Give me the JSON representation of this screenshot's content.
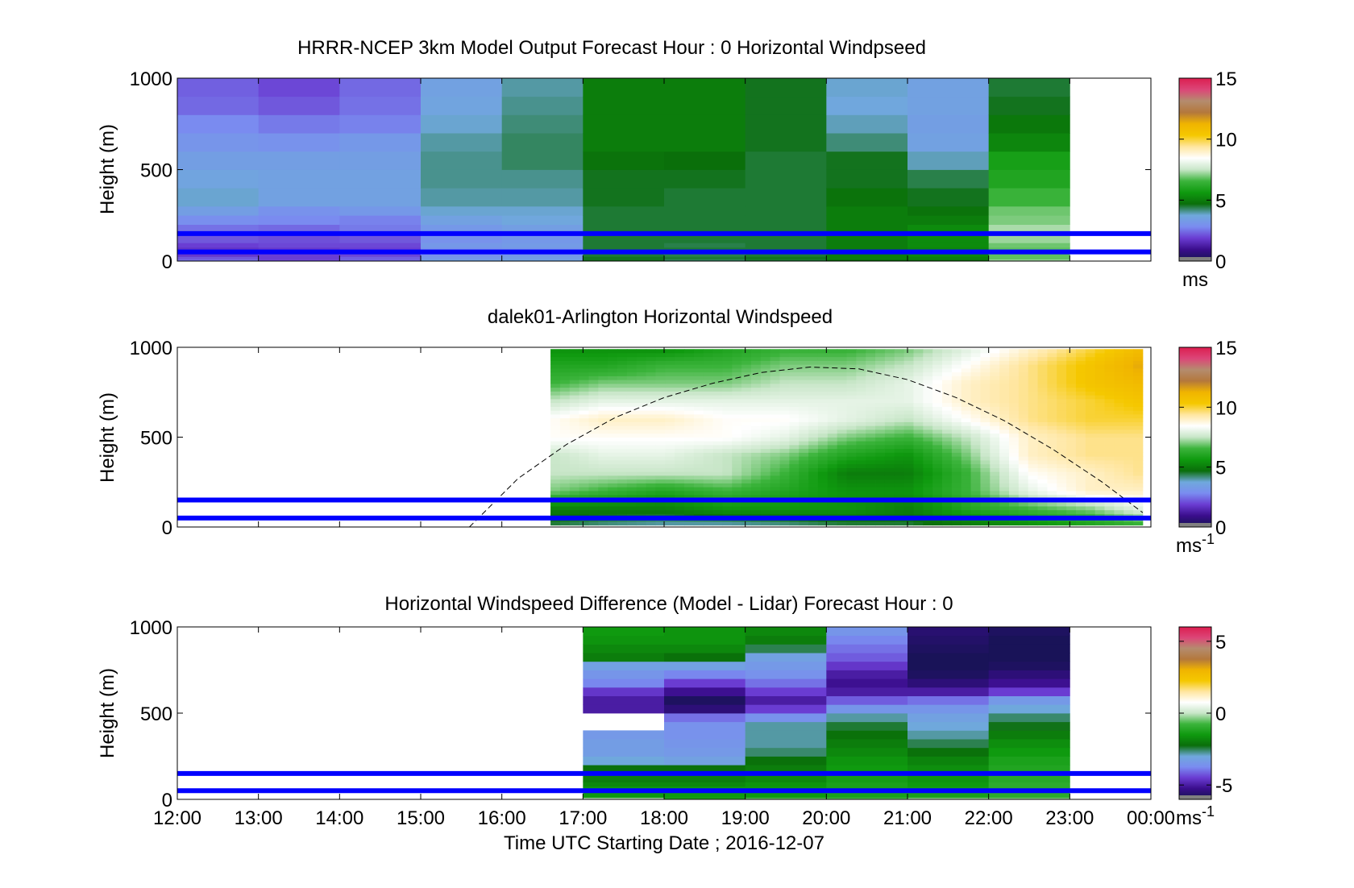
{
  "figure": {
    "xlabel": "Time UTC  Starting Date ; 2016-12-07",
    "x_tick_labels": [
      "12:00",
      "13:00",
      "14:00",
      "15:00",
      "16:00",
      "17:00",
      "18:00",
      "19:00",
      "20:00",
      "21:00",
      "22:00",
      "23:00",
      "00:00"
    ]
  },
  "colormap": [
    "#141450",
    "#3a0d8c",
    "#6a3cd2",
    "#7a8cf0",
    "#6fa8dc",
    "#0a6e0a",
    "#0f9a0f",
    "#3cb43c",
    "#c8e6c8",
    "#ffffff",
    "#ffe6a0",
    "#f5c800",
    "#f0b400",
    "#b4783c",
    "#b48c6e",
    "#dc4678",
    "#dc1e50"
  ],
  "chart_data": [
    {
      "type": "heatmap",
      "id": "model",
      "title": "HRRR-NCEP 3km Model Output   Forecast Hour : 0 Horizontal Windpseed",
      "ylabel": "Height (m)",
      "xlim": [
        12,
        24
      ],
      "ylim": [
        0,
        1000
      ],
      "y_ticks": [
        0,
        500,
        1000
      ],
      "x_ticks": [
        12,
        13,
        14,
        15,
        16,
        17,
        18,
        19,
        20,
        21,
        22,
        23,
        24
      ],
      "colorbar": {
        "range": [
          0,
          15
        ],
        "ticks": [
          0,
          5,
          10,
          15
        ],
        "tick_labels": [
          "0",
          "5",
          "10",
          "15"
        ],
        "unit": "ms"
      },
      "reference_lines_m": [
        50,
        150
      ],
      "column_start_hours": [
        12,
        13,
        14,
        15,
        16,
        17,
        18,
        19,
        20,
        21,
        22
      ],
      "column_width_h": 1,
      "row_heights_m": [
        10,
        25,
        50,
        75,
        100,
        150,
        200,
        250,
        300,
        400,
        500,
        600,
        700,
        800,
        900,
        1000
      ],
      "values": [
        [
          2.5,
          2.0,
          2.4,
          3.5,
          3.6,
          4.6,
          4.3,
          4.5,
          4.7,
          4.8,
          7.2
        ],
        [
          2.2,
          1.9,
          2.3,
          3.2,
          3.4,
          4.6,
          4.5,
          4.6,
          5.0,
          5.0,
          6.8
        ],
        [
          1.8,
          1.9,
          2.0,
          3.0,
          3.2,
          4.5,
          4.4,
          4.5,
          5.0,
          5.2,
          6.8
        ],
        [
          1.7,
          1.8,
          1.9,
          3.0,
          3.1,
          4.5,
          4.5,
          4.5,
          5.0,
          5.2,
          6.8
        ],
        [
          1.9,
          2.0,
          2.0,
          3.2,
          3.3,
          4.5,
          4.4,
          4.5,
          5.0,
          5.3,
          6.9
        ],
        [
          2.2,
          2.1,
          2.2,
          3.0,
          3.2,
          4.5,
          4.5,
          4.5,
          5.0,
          5.3,
          7.2
        ],
        [
          2.5,
          2.4,
          2.6,
          3.2,
          3.4,
          4.5,
          4.5,
          4.5,
          5.0,
          5.3,
          7.3
        ],
        [
          2.9,
          2.8,
          2.7,
          3.5,
          3.7,
          4.5,
          4.5,
          4.5,
          5.0,
          5.0,
          7.0
        ],
        [
          3.4,
          3.0,
          3.2,
          3.8,
          3.8,
          4.5,
          4.5,
          4.5,
          5.0,
          4.8,
          6.9
        ],
        [
          3.8,
          3.5,
          3.5,
          4.0,
          4.0,
          4.6,
          4.5,
          4.5,
          4.8,
          4.6,
          6.5
        ],
        [
          3.6,
          3.5,
          3.5,
          4.1,
          4.1,
          4.6,
          4.6,
          4.5,
          4.6,
          4.4,
          6.0
        ],
        [
          3.4,
          3.4,
          3.4,
          4.1,
          4.3,
          4.8,
          4.7,
          4.5,
          4.6,
          3.9,
          5.8
        ],
        [
          3.1,
          3.0,
          3.2,
          4.0,
          4.3,
          5.0,
          5.0,
          4.6,
          4.2,
          3.5,
          5.2
        ],
        [
          2.8,
          2.6,
          2.7,
          3.8,
          4.2,
          5.0,
          5.0,
          4.6,
          3.9,
          3.4,
          4.9
        ],
        [
          2.4,
          2.2,
          2.5,
          3.6,
          4.1,
          5.0,
          5.0,
          4.6,
          3.7,
          3.5,
          4.6
        ],
        [
          2.3,
          2.0,
          2.4,
          3.5,
          4.0,
          5.0,
          5.0,
          4.6,
          3.8,
          3.5,
          4.5
        ]
      ]
    },
    {
      "type": "heatmap",
      "id": "lidar",
      "title": "dalek01-Arlington  Horizontal Windspeed",
      "ylabel": "Height (m)",
      "xlim": [
        12,
        24
      ],
      "ylim": [
        0,
        1000
      ],
      "y_ticks": [
        0,
        500,
        1000
      ],
      "x_ticks": [
        12,
        13,
        14,
        15,
        16,
        17,
        18,
        19,
        20,
        21,
        22,
        23,
        24
      ],
      "colorbar": {
        "range": [
          0,
          15
        ],
        "ticks": [
          0,
          5,
          10,
          15
        ],
        "tick_labels": [
          "0",
          "5",
          "10",
          "15"
        ],
        "unit": "ms",
        "unit_exp": "-1"
      },
      "reference_lines_m": [
        50,
        150
      ],
      "boundary_layer_curve": {
        "style": "dashed",
        "x": [
          15.6,
          16.2,
          16.8,
          17.4,
          18.0,
          18.6,
          19.2,
          19.8,
          20.4,
          21.0,
          21.6,
          22.2,
          22.8,
          23.4,
          23.9
        ],
        "y": [
          0,
          270,
          460,
          610,
          720,
          800,
          860,
          890,
          880,
          820,
          720,
          590,
          430,
          250,
          80
        ]
      },
      "data_window_h": [
        16.6,
        23.9
      ],
      "key_times_h": [
        16.6,
        17.25,
        18.0,
        18.75,
        19.5,
        20.25,
        21.0,
        21.75,
        22.5,
        23.25,
        23.9
      ],
      "key_heights_m": [
        20,
        100,
        200,
        300,
        400,
        500,
        600,
        700,
        800,
        900,
        980
      ],
      "values": [
        [
          4.5,
          4.2,
          4.0,
          4.0,
          4.2,
          4.5,
          4.5,
          5.0,
          5.5,
          6.0,
          6.5
        ],
        [
          5.0,
          5.0,
          5.0,
          5.5,
          5.5,
          5.5,
          5.0,
          6.0,
          6.5,
          7.0,
          8.0
        ],
        [
          7.0,
          6.5,
          6.0,
          6.5,
          6.0,
          5.5,
          5.5,
          6.5,
          8.0,
          9.0,
          9.0
        ],
        [
          7.5,
          7.5,
          7.5,
          7.5,
          6.5,
          5.0,
          5.0,
          6.5,
          8.5,
          9.0,
          9.5
        ],
        [
          7.5,
          8.0,
          8.0,
          7.5,
          7.0,
          6.0,
          5.5,
          7.0,
          9.0,
          9.5,
          9.5
        ],
        [
          8.5,
          8.5,
          8.5,
          8.5,
          8.0,
          7.0,
          6.5,
          7.5,
          9.0,
          9.5,
          9.5
        ],
        [
          8.5,
          9.0,
          9.0,
          8.5,
          8.5,
          8.0,
          7.5,
          8.5,
          9.5,
          10.0,
          10.0
        ],
        [
          7.5,
          8.0,
          8.0,
          8.0,
          8.0,
          8.0,
          8.0,
          9.0,
          9.5,
          10.0,
          10.5
        ],
        [
          6.5,
          7.0,
          7.0,
          7.0,
          7.5,
          7.5,
          8.0,
          9.0,
          9.5,
          10.5,
          11.0
        ],
        [
          6.0,
          6.0,
          6.5,
          6.5,
          7.0,
          7.0,
          7.5,
          8.5,
          9.5,
          10.5,
          11.5
        ],
        [
          5.5,
          5.5,
          5.5,
          6.0,
          6.5,
          6.5,
          7.0,
          8.0,
          9.0,
          10.0,
          11.0
        ]
      ]
    },
    {
      "type": "heatmap",
      "id": "difference",
      "title": "Horizontal Windspeed Difference (Model - Lidar) Forecast Hour : 0",
      "ylabel": "Height (m)",
      "xlim": [
        12,
        24
      ],
      "ylim": [
        0,
        1000
      ],
      "y_ticks": [
        0,
        500,
        1000
      ],
      "x_ticks": [
        12,
        13,
        14,
        15,
        16,
        17,
        18,
        19,
        20,
        21,
        22,
        23,
        24
      ],
      "colorbar": {
        "range": [
          -6,
          6
        ],
        "ticks": [
          -5,
          0,
          5
        ],
        "tick_labels": [
          "-5",
          "0",
          "5"
        ],
        "unit": "ms",
        "unit_exp": "-1"
      },
      "reference_lines_m": [
        50,
        150
      ],
      "column_start_hours": [
        17,
        18,
        19,
        20,
        21,
        22
      ],
      "column_width_h": 1,
      "row_heights_m": [
        10,
        25,
        50,
        75,
        100,
        150,
        200,
        250,
        300,
        350,
        400,
        450,
        500,
        550,
        600,
        650,
        700,
        750,
        800,
        850,
        900,
        950,
        1000
      ],
      "values": [
        [
          0.0,
          -1.2,
          -0.5,
          -0.6,
          -0.2,
          -0.3
        ],
        [
          -1.5,
          -1.5,
          -1.5,
          -1.3,
          -1.3,
          -1.0
        ],
        [
          -1.5,
          -1.5,
          -1.5,
          -1.3,
          -1.3,
          -1.0
        ],
        [
          -1.5,
          -1.5,
          -1.5,
          -1.3,
          -1.4,
          -1.0
        ],
        [
          -1.8,
          -1.8,
          -1.6,
          -1.3,
          -1.5,
          -1.0
        ],
        [
          -2.0,
          -2.0,
          -1.8,
          -1.4,
          -1.6,
          -1.1
        ],
        [
          -2.2,
          -2.2,
          -2.0,
          -1.5,
          -1.7,
          -1.2
        ],
        [
          -3.0,
          -3.2,
          -2.2,
          -1.6,
          -1.9,
          -1.3
        ],
        [
          -3.3,
          -3.4,
          -2.6,
          -1.8,
          -2.2,
          -1.5
        ],
        [
          -3.3,
          -3.5,
          -2.8,
          -2.0,
          -2.5,
          -1.7
        ],
        [
          -3.4,
          -3.6,
          -2.8,
          -2.2,
          -2.8,
          -2.0
        ],
        [
          null,
          -3.6,
          -2.8,
          -2.4,
          -3.0,
          -2.3
        ],
        [
          null,
          -4.0,
          -3.6,
          -2.8,
          -3.2,
          -2.6
        ],
        [
          -5.0,
          -5.5,
          -4.5,
          -3.5,
          -3.5,
          -3.0
        ],
        [
          -5.0,
          -5.8,
          -5.0,
          -4.2,
          -4.0,
          -3.4
        ],
        [
          -4.6,
          -5.2,
          -4.5,
          -5.0,
          -5.0,
          -4.5
        ],
        [
          -3.8,
          -4.5,
          -4.0,
          -5.2,
          -5.5,
          -5.2
        ],
        [
          -3.5,
          -3.8,
          -3.6,
          -5.0,
          -5.8,
          -5.5
        ],
        [
          -3.2,
          -3.2,
          -3.4,
          -4.6,
          -5.9,
          -5.8
        ],
        [
          -2.0,
          -2.2,
          -3.2,
          -4.2,
          -5.9,
          -5.9
        ],
        [
          -1.8,
          -1.8,
          -2.5,
          -4.0,
          -5.8,
          -5.9
        ],
        [
          -1.6,
          -1.6,
          -2.0,
          -3.8,
          -5.7,
          -5.9
        ],
        [
          -1.5,
          -1.6,
          -1.8,
          -3.5,
          -5.6,
          -5.8
        ]
      ]
    }
  ]
}
